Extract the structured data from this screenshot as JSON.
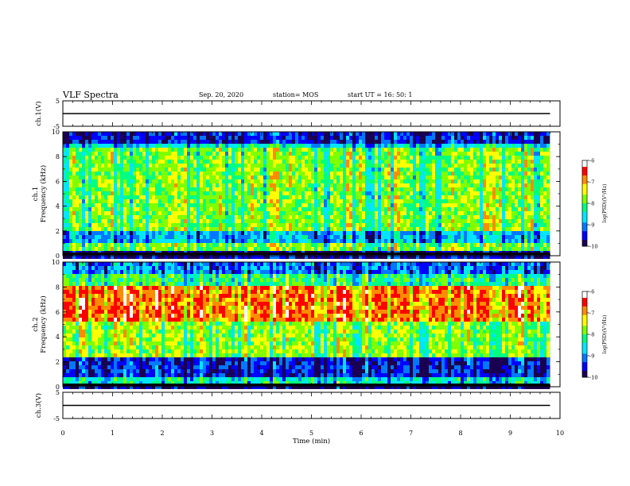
{
  "header": {
    "title": "VLF Spectra",
    "date": "Sep. 20, 2020",
    "station": "station= MOS",
    "start": "start  UT =   16: 50: 1"
  },
  "colors": {
    "colormap": [
      "#1a0050",
      "#0000ff",
      "#0078ff",
      "#00e6ff",
      "#00ff80",
      "#7fff00",
      "#ffff00",
      "#ff8c00",
      "#ff0000",
      "#ffffff"
    ]
  },
  "chart_data": [
    {
      "type": "line",
      "panel": "ch1-waveform",
      "ylabel": "ch.1(V)",
      "ylim": [
        -5,
        5
      ],
      "yticks": [
        "5",
        "-5"
      ],
      "x": [
        0,
        9.8
      ],
      "y": [
        0,
        0
      ]
    },
    {
      "type": "heatmap",
      "panel": "ch1-spectrogram",
      "ylabel": "ch.1\nFrequency (kHz)",
      "ylim": [
        0,
        10
      ],
      "yticks": [
        "0",
        "2",
        "4",
        "6",
        "8",
        "10"
      ],
      "xlim": [
        0,
        10
      ],
      "data_end_min": 9.8,
      "colorbar": {
        "label": "log(PSD)(V²/Hz)",
        "range": [
          -10,
          -6
        ],
        "ticks": [
          "-6",
          "-7",
          "-8",
          "-9",
          "-10"
        ]
      }
    },
    {
      "type": "heatmap",
      "panel": "ch2-spectrogram",
      "ylabel": "ch.2\nFrequency (kHz)",
      "ylim": [
        0,
        10
      ],
      "yticks": [
        "0",
        "2",
        "4",
        "6",
        "8",
        "10"
      ],
      "xlim": [
        0,
        10
      ],
      "data_end_min": 9.8,
      "colorbar": {
        "label": "log(PSD)(V²/Hz)",
        "range": [
          -10,
          -6
        ],
        "ticks": [
          "-6",
          "-7",
          "-8",
          "-9",
          "-10"
        ]
      }
    },
    {
      "type": "line",
      "panel": "ch3-waveform",
      "ylabel": "ch.3(V)",
      "ylim": [
        -5,
        5
      ],
      "yticks": [
        "5",
        "-5"
      ],
      "x": [
        0,
        9.8
      ],
      "y": [
        0,
        0
      ]
    }
  ],
  "xaxis": {
    "label": "Time  (min)",
    "ticks": [
      "0",
      "1",
      "2",
      "3",
      "4",
      "5",
      "6",
      "7",
      "8",
      "9",
      "10"
    ]
  }
}
